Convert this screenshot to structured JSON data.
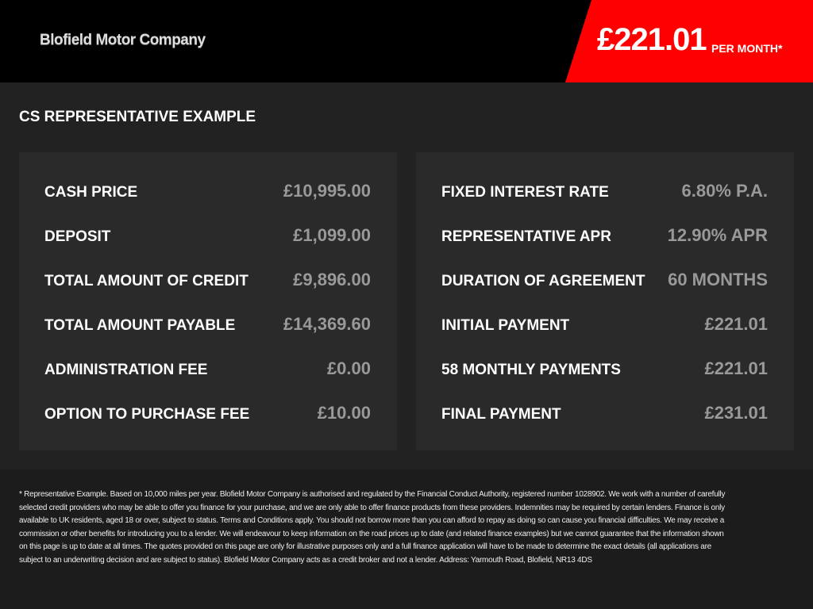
{
  "header": {
    "logo": "Blofield Motor Company",
    "price": "£221.01",
    "price_suffix": "PER MONTH*"
  },
  "section": {
    "title": "CS REPRESENTATIVE EXAMPLE"
  },
  "left": {
    "rows": [
      {
        "label": "CASH PRICE",
        "value": "£10,995.00"
      },
      {
        "label": "DEPOSIT",
        "value": "£1,099.00"
      },
      {
        "label": "TOTAL AMOUNT OF CREDIT",
        "value": "£9,896.00"
      },
      {
        "label": "TOTAL AMOUNT PAYABLE",
        "value": "£14,369.60"
      },
      {
        "label": "ADMINISTRATION FEE",
        "value": "£0.00"
      },
      {
        "label": "OPTION TO PURCHASE FEE",
        "value": "£10.00"
      }
    ]
  },
  "right": {
    "rows": [
      {
        "label": "FIXED INTEREST RATE",
        "value": "6.80% P.A."
      },
      {
        "label": "REPRESENTATIVE APR",
        "value": "12.90% APR"
      },
      {
        "label": "DURATION OF AGREEMENT",
        "value": "60 MONTHS"
      },
      {
        "label": "INITIAL PAYMENT",
        "value": "£221.01"
      },
      {
        "label": "58 MONTHLY PAYMENTS",
        "value": "£221.01"
      },
      {
        "label": "FINAL PAYMENT",
        "value": "£231.01"
      }
    ]
  },
  "footer": {
    "text": "* Representative Example. Based on 10,000 miles per year. Blofield Motor Company is authorised and regulated by the Financial Conduct Authority, registered number 1028902. We work with a number of carefully selected credit providers who may be able to offer you finance for your purchase, and we are only able to offer finance products from these providers. Indemnities may be required by certain lenders. Finance is only available to UK residents, aged 18 or over, subject to status. Terms and Conditions apply. You should not borrow more than you can afford to repay as doing so can cause you financial difficulties. We may receive a commission or other benefits for introducing you to a lender. We will endeavour to keep information on the road prices up to date (and related finance examples) but we cannot guarantee that the information shown on this page is up to date at all times. The quotes provided on this page are only for illustrative purposes only and a full finance application will have to be made to determine the exact details (all applications are subject to an underwriting decision and are subject to status). Blofield Motor Company acts as a credit broker and not a lender. Address: Yarmouth Road, Blofield, NR13 4DS"
  }
}
